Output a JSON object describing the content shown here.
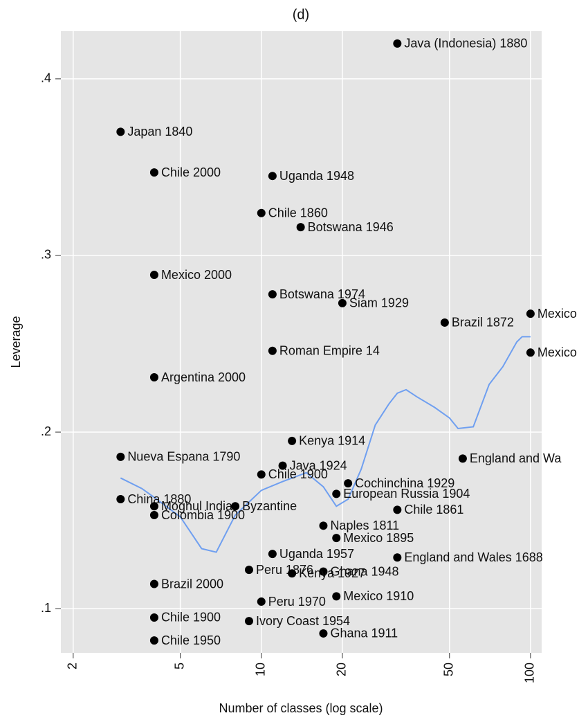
{
  "chart_data": {
    "type": "scatter",
    "title": "(d)",
    "xlabel": "Number of classes (log scale)",
    "ylabel": "Leverage",
    "xscale": "log",
    "xlim": [
      1.8,
      110
    ],
    "ylim": [
      0.075,
      0.427
    ],
    "xticks": [
      2,
      5,
      10,
      20,
      50,
      100
    ],
    "yticks": [
      {
        "value": 0.1,
        "label": ".1"
      },
      {
        "value": 0.2,
        "label": ".2"
      },
      {
        "value": 0.3,
        "label": ".3"
      },
      {
        "value": 0.4,
        "label": ".4"
      }
    ],
    "grid": true,
    "series": [
      {
        "type": "scatter",
        "color": "#000000",
        "x": [
          32,
          3,
          4,
          11,
          10,
          14,
          4,
          11,
          20,
          48,
          100,
          100,
          11,
          4,
          13,
          3,
          56,
          12,
          10,
          21,
          19,
          3,
          4,
          4,
          32,
          8,
          9,
          19,
          32,
          17,
          13,
          19,
          10,
          4,
          9,
          17,
          4,
          4,
          11,
          17
        ],
        "values": [
          0.42,
          0.37,
          0.347,
          0.345,
          0.324,
          0.316,
          0.289,
          0.278,
          0.273,
          0.262,
          0.267,
          0.245,
          0.246,
          0.231,
          0.195,
          0.186,
          0.185,
          0.181,
          0.176,
          0.171,
          0.165,
          0.162,
          0.158,
          0.153,
          0.156,
          0.158,
          0.122,
          0.14,
          0.129,
          0.121,
          0.12,
          0.107,
          0.104,
          0.095,
          0.093,
          0.086,
          0.082,
          0.114,
          0.131,
          0.147
        ],
        "labels": [
          "Java (Indonesia) 1880",
          "Japan 1840",
          "Chile 2000",
          "Uganda 1948",
          "Chile 1860",
          "Botswana 1946",
          "Mexico 2000",
          "Botswana 1974",
          "Siam 1929",
          "Brazil 1872",
          "Mexico",
          "Mexico",
          "Roman Empire 14",
          "Argentina 2000",
          "Kenya 1914",
          "Nueva Espana 1790",
          "England and Wa",
          "Java 1924",
          "Chile 1900",
          "Cochinchina 1929",
          "European Russia 1904",
          "China 1880",
          "Moghul India",
          "Colombia 1900",
          "Chile 1861",
          "Byzantine",
          "Peru 1876",
          "Mexico 1895",
          "England and Wales 1688",
          "Ghana 1948",
          "Kenya 1927",
          "Mexico 1910",
          "Peru 1970",
          "Chile 1900",
          "Ivory Coast 1954",
          "Ghana 1911",
          "Chile 1950",
          "Brazil 2000",
          "Uganda 1957",
          "Naples 1811"
        ]
      },
      {
        "type": "line",
        "color": "#6f9ff0",
        "x": [
          3,
          3.6,
          4,
          5,
          6,
          6.8,
          8,
          10,
          12,
          14.7,
          17,
          19,
          21,
          23.5,
          26.5,
          29.8,
          32,
          34.5,
          37.8,
          44,
          50,
          53.8,
          61.3,
          70.2,
          78.9,
          88.9,
          93.1,
          100
        ],
        "values": [
          0.174,
          0.168,
          0.163,
          0.152,
          0.134,
          0.132,
          0.153,
          0.167,
          0.172,
          0.177,
          0.169,
          0.158,
          0.162,
          0.179,
          0.204,
          0.216,
          0.222,
          0.224,
          0.22,
          0.214,
          0.208,
          0.202,
          0.203,
          0.227,
          0.237,
          0.251,
          0.254,
          0.254
        ]
      }
    ]
  }
}
